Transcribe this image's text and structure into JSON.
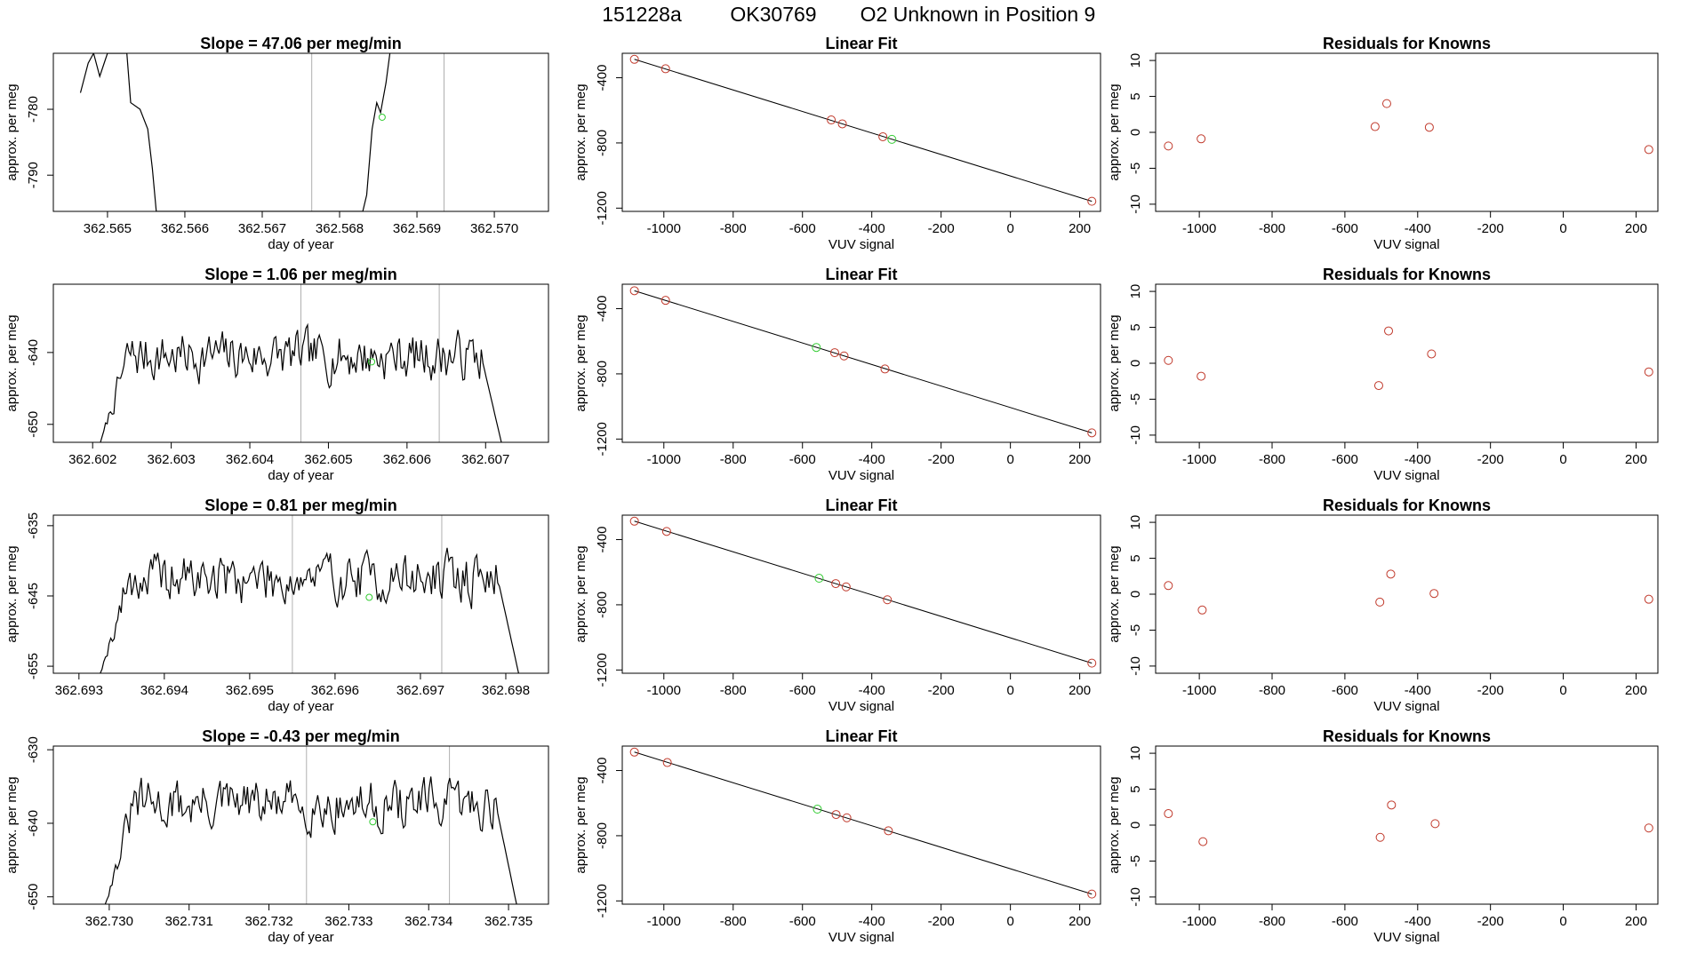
{
  "header": {
    "run_id": "151228a",
    "tank_id": "OK30769",
    "description": "O2 Unknown in Position  9"
  },
  "colors": {
    "trace": "#000000",
    "known_point": "#c0392b",
    "unknown_point": "#33cc33",
    "window_line": "#b0b0b0",
    "axis": "#000000"
  },
  "chart_data": [
    {
      "type": "line",
      "row": 1,
      "col": 1,
      "title": "Slope =  47.06  per meg/min",
      "xlabel": "day of year",
      "ylabel": "approx. per meg",
      "xlim": [
        362.5643,
        362.5707
      ],
      "ylim": [
        -795.5,
        -771.5
      ],
      "xticks": [
        362.565,
        362.566,
        362.567,
        362.568,
        362.569,
        362.57
      ],
      "xdecimals": 3,
      "yticks": [
        -780,
        -790
      ],
      "ydecimals": 0,
      "window": [
        362.56764,
        362.56935
      ],
      "trace": [
        [
          362.56465,
          -777.5
        ],
        [
          362.56475,
          -773
        ],
        [
          362.56482,
          -771.5
        ],
        [
          362.5649,
          -775
        ],
        [
          362.565,
          -771.5
        ],
        [
          362.56515,
          -771.5
        ],
        [
          362.56525,
          -771.5
        ],
        [
          362.5653,
          -779
        ],
        [
          362.56542,
          -780
        ],
        [
          362.56552,
          -783
        ],
        [
          362.56558,
          -789
        ],
        [
          362.56563,
          -795.5
        ],
        [
          362.5683,
          -795.5
        ],
        [
          362.56835,
          -793
        ],
        [
          362.56842,
          -783
        ],
        [
          362.56848,
          -779
        ],
        [
          362.56853,
          -780.5
        ],
        [
          362.5686,
          -776
        ],
        [
          362.56865,
          -771.5
        ]
      ],
      "unknown_marker": [
        362.56855,
        -781.2
      ]
    },
    {
      "type": "scatter",
      "row": 1,
      "col": 2,
      "title": "Linear Fit",
      "xlabel": "VUV signal",
      "ylabel": "approx. per meg",
      "xlim": [
        -1120,
        260
      ],
      "ylim": [
        -1220,
        -250
      ],
      "xticks": [
        -1000,
        -800,
        -600,
        -400,
        -200,
        0,
        200
      ],
      "yticks": [
        -400,
        -800,
        -1200
      ],
      "fit_line": [
        [
          -1085,
          -287
        ],
        [
          235,
          -1158
        ]
      ],
      "known_points": [
        [
          -1085,
          -287
        ],
        [
          -995,
          -345
        ],
        [
          -517,
          -659
        ],
        [
          -485,
          -683
        ],
        [
          -368,
          -762
        ],
        [
          235,
          -1158
        ]
      ],
      "unknown_point": [
        -342,
        -778
      ]
    },
    {
      "type": "scatter",
      "row": 1,
      "col": 3,
      "title": "Residuals for Knowns",
      "xlabel": "VUV signal",
      "ylabel": "approx. per meg",
      "xlim": [
        -1120,
        260
      ],
      "ylim": [
        -11,
        11
      ],
      "xticks": [
        -1000,
        -800,
        -600,
        -400,
        -200,
        0,
        200
      ],
      "yticks": [
        10,
        5,
        0,
        -5,
        -10
      ],
      "points": [
        [
          -1085,
          -1.9
        ],
        [
          -995,
          -0.9
        ],
        [
          -517,
          0.8
        ],
        [
          -485,
          4.0
        ],
        [
          -368,
          0.7
        ],
        [
          235,
          -2.4
        ]
      ]
    },
    {
      "type": "line",
      "row": 2,
      "col": 1,
      "title": "Slope =  1.06  per meg/min",
      "xlabel": "day of year",
      "ylabel": "approx. per meg",
      "xlim": [
        362.6015,
        362.6078
      ],
      "ylim": [
        -652.5,
        -630.5
      ],
      "xticks": [
        362.602,
        362.603,
        362.604,
        362.605,
        362.606,
        362.607
      ],
      "xdecimals": 3,
      "yticks": [
        -640,
        -650
      ],
      "ydecimals": 0,
      "window": [
        362.60465,
        362.60641
      ],
      "trace_seed": 7,
      "trace_range": [
        362.6021,
        362.6072
      ],
      "trace_level": -640.5,
      "trace_amp": 2.6,
      "unknown_marker": [
        362.60555,
        -641.3
      ]
    },
    {
      "type": "scatter",
      "row": 2,
      "col": 2,
      "title": "Linear Fit",
      "xlabel": "VUV signal",
      "ylabel": "approx. per meg",
      "xlim": [
        -1120,
        260
      ],
      "ylim": [
        -1220,
        -250
      ],
      "xticks": [
        -1000,
        -800,
        -600,
        -400,
        -200,
        0,
        200
      ],
      "yticks": [
        -400,
        -800,
        -1200
      ],
      "fit_line": [
        [
          -1085,
          -290
        ],
        [
          235,
          -1162
        ]
      ],
      "known_points": [
        [
          -1085,
          -290
        ],
        [
          -995,
          -349
        ],
        [
          -507,
          -670
        ],
        [
          -480,
          -690
        ],
        [
          -362,
          -770
        ],
        [
          235,
          -1162
        ]
      ],
      "unknown_point": [
        -560,
        -638
      ]
    },
    {
      "type": "scatter",
      "row": 2,
      "col": 3,
      "title": "Residuals for Knowns",
      "xlabel": "VUV signal",
      "ylabel": "approx. per meg",
      "xlim": [
        -1120,
        260
      ],
      "ylim": [
        -11,
        11
      ],
      "xticks": [
        -1000,
        -800,
        -600,
        -400,
        -200,
        0,
        200
      ],
      "yticks": [
        10,
        5,
        0,
        -5,
        -10
      ],
      "points": [
        [
          -1085,
          0.4
        ],
        [
          -995,
          -1.8
        ],
        [
          -507,
          -3.1
        ],
        [
          -480,
          4.5
        ],
        [
          -362,
          1.3
        ],
        [
          235,
          -1.2
        ]
      ]
    },
    {
      "type": "line",
      "row": 3,
      "col": 1,
      "title": "Slope =  0.81  per meg/min",
      "xlabel": "day of year",
      "ylabel": "approx. per meg",
      "xlim": [
        362.6927,
        362.6985
      ],
      "ylim": [
        -656,
        -633.5
      ],
      "xticks": [
        362.693,
        362.694,
        362.695,
        362.696,
        362.697,
        362.698
      ],
      "xdecimals": 3,
      "yticks": [
        -635,
        -645,
        -655
      ],
      "ydecimals": 0,
      "window": [
        362.6955,
        362.69725
      ],
      "trace_seed": 19,
      "trace_range": [
        362.69325,
        362.69815
      ],
      "trace_level": -642.5,
      "trace_amp": 2.8,
      "unknown_marker": [
        362.6964,
        -645.2
      ]
    },
    {
      "type": "scatter",
      "row": 3,
      "col": 2,
      "title": "Linear Fit",
      "xlabel": "VUV signal",
      "ylabel": "approx. per meg",
      "xlim": [
        -1120,
        260
      ],
      "ylim": [
        -1220,
        -250
      ],
      "xticks": [
        -1000,
        -800,
        -600,
        -400,
        -200,
        0,
        200
      ],
      "yticks": [
        -400,
        -800,
        -1200
      ],
      "fit_line": [
        [
          -1085,
          -287
        ],
        [
          235,
          -1158
        ]
      ],
      "known_points": [
        [
          -1085,
          -287
        ],
        [
          -992,
          -350
        ],
        [
          -504,
          -670
        ],
        [
          -474,
          -690
        ],
        [
          -355,
          -769
        ],
        [
          235,
          -1158
        ]
      ],
      "unknown_point": [
        -552,
        -637
      ]
    },
    {
      "type": "scatter",
      "row": 3,
      "col": 3,
      "title": "Residuals for Knowns",
      "xlabel": "VUV signal",
      "ylabel": "approx. per meg",
      "xlim": [
        -1120,
        260
      ],
      "ylim": [
        -11,
        11
      ],
      "xticks": [
        -1000,
        -800,
        -600,
        -400,
        -200,
        0,
        200
      ],
      "yticks": [
        10,
        5,
        0,
        -5,
        -10
      ],
      "points": [
        [
          -1085,
          1.2
        ],
        [
          -992,
          -2.2
        ],
        [
          -504,
          -1.1
        ],
        [
          -474,
          2.8
        ],
        [
          -355,
          0.1
        ],
        [
          235,
          -0.7
        ]
      ]
    },
    {
      "type": "line",
      "row": 4,
      "col": 1,
      "title": "Slope =  -0.43  per meg/min",
      "xlabel": "day of year",
      "ylabel": "approx. per meg",
      "xlim": [
        362.7293,
        362.7355
      ],
      "ylim": [
        -651,
        -629.5
      ],
      "xticks": [
        362.73,
        362.731,
        362.732,
        362.733,
        362.734,
        362.735
      ],
      "xdecimals": 3,
      "yticks": [
        -630,
        -640,
        -650
      ],
      "ydecimals": 0,
      "window": [
        362.73247,
        362.73426
      ],
      "trace_seed": 31,
      "trace_range": [
        362.72995,
        362.7351
      ],
      "trace_level": -637.5,
      "trace_amp": 2.6,
      "unknown_marker": [
        362.7333,
        -639.8
      ]
    },
    {
      "type": "scatter",
      "row": 4,
      "col": 2,
      "title": "Linear Fit",
      "xlabel": "VUV signal",
      "ylabel": "approx. per meg",
      "xlim": [
        -1120,
        260
      ],
      "ylim": [
        -1220,
        -250
      ],
      "xticks": [
        -1000,
        -800,
        -600,
        -400,
        -200,
        0,
        200
      ],
      "yticks": [
        -400,
        -800,
        -1200
      ],
      "fit_line": [
        [
          -1085,
          -287
        ],
        [
          235,
          -1158
        ]
      ],
      "known_points": [
        [
          -1085,
          -287
        ],
        [
          -990,
          -351
        ],
        [
          -503,
          -670
        ],
        [
          -472,
          -690
        ],
        [
          -352,
          -770
        ],
        [
          235,
          -1158
        ]
      ],
      "unknown_point": [
        -557,
        -637
      ]
    },
    {
      "type": "scatter",
      "row": 4,
      "col": 3,
      "title": "Residuals for Knowns",
      "xlabel": "VUV signal",
      "ylabel": "approx. per meg",
      "xlim": [
        -1120,
        260
      ],
      "ylim": [
        -11,
        11
      ],
      "xticks": [
        -1000,
        -800,
        -600,
        -400,
        -200,
        0,
        200
      ],
      "yticks": [
        10,
        5,
        0,
        -5,
        -10
      ],
      "points": [
        [
          -1085,
          1.6
        ],
        [
          -990,
          -2.3
        ],
        [
          -503,
          -1.7
        ],
        [
          -472,
          2.8
        ],
        [
          -352,
          0.2
        ],
        [
          235,
          -0.4
        ]
      ]
    }
  ]
}
